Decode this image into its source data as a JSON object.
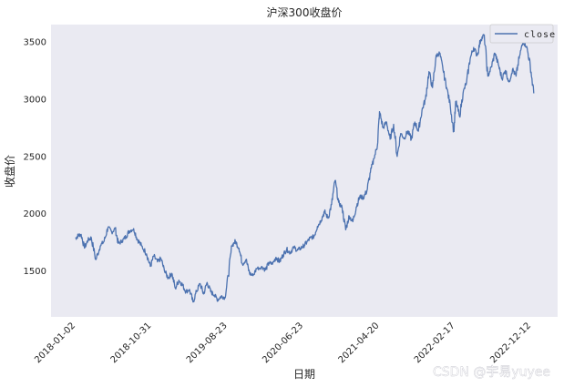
{
  "chart_data": {
    "type": "line",
    "title": "沪深300收盘价",
    "xlabel": "日期",
    "ylabel": "收盘价",
    "x_tick_labels": [
      "2018-01-02",
      "2018-10-31",
      "2019-08-23",
      "2020-06-23",
      "2021-04-20",
      "2022-02-17",
      "2022-12-12"
    ],
    "x_range": [
      "2018-01-02",
      "2022-12-12"
    ],
    "yticks": [
      1500,
      2000,
      2500,
      3000,
      3500
    ],
    "ylim": [
      1100,
      3650
    ],
    "grid": false,
    "legend": "top-right",
    "series": [
      {
        "name": "close",
        "color": "#4c72b0",
        "points": [
          [
            "2018-01-02",
            1785
          ],
          [
            "2018-01-12",
            1810
          ],
          [
            "2018-01-24",
            1820
          ],
          [
            "2018-02-06",
            1700
          ],
          [
            "2018-02-20",
            1770
          ],
          [
            "2018-03-05",
            1790
          ],
          [
            "2018-03-23",
            1600
          ],
          [
            "2018-04-10",
            1720
          ],
          [
            "2018-04-25",
            1760
          ],
          [
            "2018-05-10",
            1880
          ],
          [
            "2018-05-25",
            1840
          ],
          [
            "2018-06-08",
            1870
          ],
          [
            "2018-06-20",
            1740
          ],
          [
            "2018-07-05",
            1760
          ],
          [
            "2018-07-20",
            1800
          ],
          [
            "2018-08-03",
            1850
          ],
          [
            "2018-08-20",
            1870
          ],
          [
            "2018-09-03",
            1780
          ],
          [
            "2018-09-20",
            1720
          ],
          [
            "2018-10-10",
            1650
          ],
          [
            "2018-10-25",
            1540
          ],
          [
            "2018-11-08",
            1630
          ],
          [
            "2018-11-22",
            1580
          ],
          [
            "2018-12-06",
            1610
          ],
          [
            "2018-12-20",
            1500
          ],
          [
            "2019-01-04",
            1440
          ],
          [
            "2019-01-18",
            1480
          ],
          [
            "2019-02-01",
            1350
          ],
          [
            "2019-02-15",
            1420
          ],
          [
            "2019-03-01",
            1380
          ],
          [
            "2019-03-15",
            1320
          ],
          [
            "2019-03-29",
            1340
          ],
          [
            "2019-04-12",
            1230
          ],
          [
            "2019-04-26",
            1320
          ],
          [
            "2019-05-10",
            1390
          ],
          [
            "2019-05-24",
            1300
          ],
          [
            "2019-06-07",
            1400
          ],
          [
            "2019-06-21",
            1320
          ],
          [
            "2019-07-05",
            1290
          ],
          [
            "2019-07-19",
            1250
          ],
          [
            "2019-08-02",
            1280
          ],
          [
            "2019-08-16",
            1270
          ],
          [
            "2019-08-30",
            1460
          ],
          [
            "2019-09-13",
            1720
          ],
          [
            "2019-09-27",
            1760
          ],
          [
            "2019-10-11",
            1700
          ],
          [
            "2019-10-25",
            1560
          ],
          [
            "2019-11-08",
            1600
          ],
          [
            "2019-11-22",
            1480
          ],
          [
            "2019-12-06",
            1460
          ],
          [
            "2019-12-20",
            1520
          ],
          [
            "2020-01-10",
            1540
          ],
          [
            "2020-01-24",
            1510
          ],
          [
            "2020-02-07",
            1570
          ],
          [
            "2020-02-21",
            1560
          ],
          [
            "2020-03-06",
            1620
          ],
          [
            "2020-03-20",
            1580
          ],
          [
            "2020-04-03",
            1640
          ],
          [
            "2020-04-17",
            1690
          ],
          [
            "2020-05-01",
            1660
          ],
          [
            "2020-05-15",
            1710
          ],
          [
            "2020-05-29",
            1680
          ],
          [
            "2020-06-12",
            1700
          ],
          [
            "2020-06-23",
            1720
          ],
          [
            "2020-07-06",
            1750
          ],
          [
            "2020-07-20",
            1790
          ],
          [
            "2020-08-03",
            1800
          ],
          [
            "2020-08-17",
            1890
          ],
          [
            "2020-08-31",
            1940
          ],
          [
            "2020-09-14",
            2020
          ],
          [
            "2020-09-28",
            1960
          ],
          [
            "2020-10-12",
            2080
          ],
          [
            "2020-10-26",
            2290
          ],
          [
            "2020-11-09",
            2100
          ],
          [
            "2020-11-23",
            2050
          ],
          [
            "2020-12-07",
            1860
          ],
          [
            "2020-12-21",
            1980
          ],
          [
            "2021-01-04",
            1930
          ],
          [
            "2021-01-18",
            2060
          ],
          [
            "2021-02-01",
            2150
          ],
          [
            "2021-02-15",
            2140
          ],
          [
            "2021-03-01",
            2200
          ],
          [
            "2021-03-15",
            2360
          ],
          [
            "2021-03-29",
            2480
          ],
          [
            "2021-04-12",
            2600
          ],
          [
            "2021-04-20",
            2890
          ],
          [
            "2021-05-04",
            2750
          ],
          [
            "2021-05-18",
            2800
          ],
          [
            "2021-06-01",
            2650
          ],
          [
            "2021-06-15",
            2780
          ],
          [
            "2021-06-29",
            2500
          ],
          [
            "2021-07-13",
            2700
          ],
          [
            "2021-07-27",
            2660
          ],
          [
            "2021-08-10",
            2720
          ],
          [
            "2021-08-24",
            2650
          ],
          [
            "2021-09-07",
            2800
          ],
          [
            "2021-09-21",
            2720
          ],
          [
            "2021-10-05",
            2900
          ],
          [
            "2021-10-19",
            3000
          ],
          [
            "2021-11-02",
            3240
          ],
          [
            "2021-11-16",
            3100
          ],
          [
            "2021-11-30",
            3380
          ],
          [
            "2021-12-14",
            3400
          ],
          [
            "2021-12-28",
            3250
          ],
          [
            "2022-01-11",
            3100
          ],
          [
            "2022-01-25",
            2950
          ],
          [
            "2022-02-08",
            2720
          ],
          [
            "2022-02-17",
            2980
          ],
          [
            "2022-03-03",
            2850
          ],
          [
            "2022-03-17",
            3050
          ],
          [
            "2022-03-31",
            3150
          ],
          [
            "2022-04-14",
            3350
          ],
          [
            "2022-04-28",
            3450
          ],
          [
            "2022-05-12",
            3380
          ],
          [
            "2022-05-26",
            3520
          ],
          [
            "2022-06-09",
            3560
          ],
          [
            "2022-06-23",
            3200
          ],
          [
            "2022-07-07",
            3280
          ],
          [
            "2022-07-21",
            3400
          ],
          [
            "2022-08-04",
            3300
          ],
          [
            "2022-08-18",
            3180
          ],
          [
            "2022-09-01",
            3250
          ],
          [
            "2022-09-15",
            3150
          ],
          [
            "2022-09-29",
            3260
          ],
          [
            "2022-10-13",
            3200
          ],
          [
            "2022-10-27",
            3380
          ],
          [
            "2022-11-10",
            3500
          ],
          [
            "2022-11-24",
            3460
          ],
          [
            "2022-12-08",
            3300
          ],
          [
            "2022-12-22",
            3050
          ]
        ]
      }
    ]
  },
  "watermark": "CSDN @宇易yuyee"
}
